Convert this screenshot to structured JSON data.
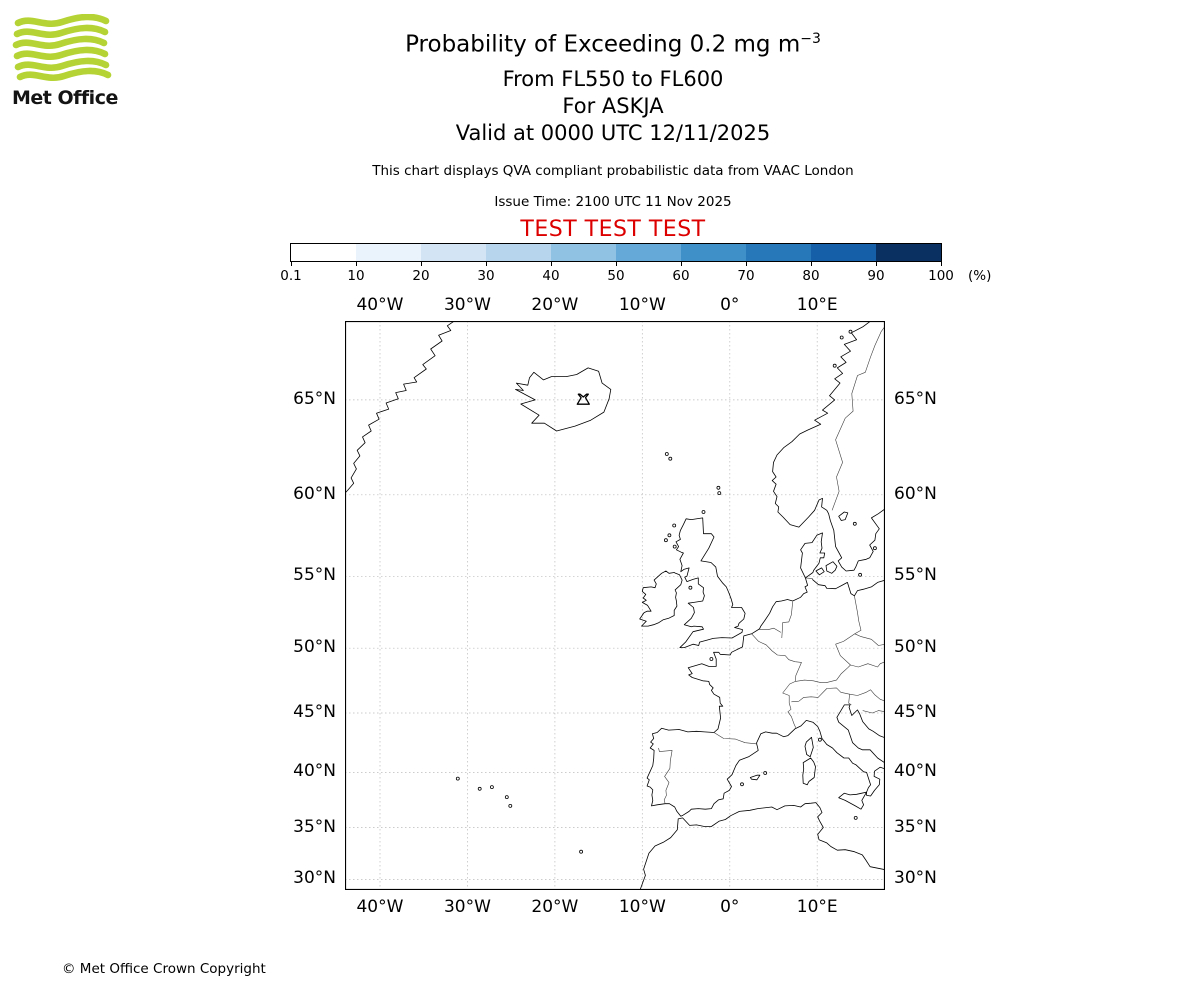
{
  "branding": {
    "logo_text": "Met Office",
    "logo_green": "#b5d334"
  },
  "header": {
    "title_main": "Probability of Exceeding 0.2 mg m",
    "title_exponent": "−3",
    "subtitles": [
      "From FL550 to FL600",
      "For ASKJA",
      "Valid at 0000 UTC 12/11/2025"
    ],
    "disclaimer": "This chart displays QVA compliant probabilistic data from VAAC London",
    "issue_time": "Issue Time: 2100 UTC 11 Nov 2025",
    "test_banner": "TEST TEST TEST",
    "test_banner_color": "#dd0000"
  },
  "colorbar": {
    "ticks": [
      "0.1",
      "10",
      "20",
      "30",
      "40",
      "50",
      "60",
      "70",
      "80",
      "90",
      "100"
    ],
    "unit": "(%)",
    "colors": [
      "#ffffff",
      "#eaf3fb",
      "#d3e4f4",
      "#b7d5ed",
      "#90c2e3",
      "#64a9d8",
      "#3f8fc9",
      "#2678b8",
      "#155fa8",
      "#0a2f61"
    ]
  },
  "map": {
    "lon_labels": [
      "40°W",
      "30°W",
      "20°W",
      "10°W",
      "0°",
      "10°E"
    ],
    "lat_labels": [
      "65°N",
      "60°N",
      "55°N",
      "50°N",
      "45°N",
      "40°N",
      "35°N",
      "30°N"
    ],
    "volcano_name": "ASKJA"
  },
  "footer": {
    "copyright": "© Met Office Crown Copyright"
  }
}
